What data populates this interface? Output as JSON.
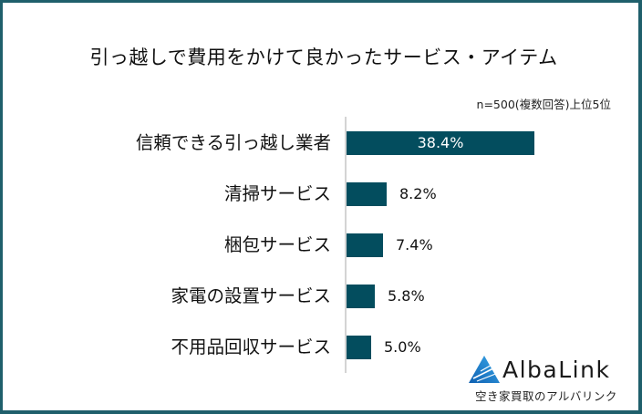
{
  "title": "引っ越しで費用をかけて良かったサービス・アイテム",
  "note": "n=500(複数回答)上位5位",
  "colors": {
    "bar": "#034d5e",
    "frame": "#1f5f6b",
    "axis": "#d4d4d4",
    "logo": "#1e8ad6"
  },
  "chart_data": {
    "type": "bar",
    "orientation": "horizontal",
    "title": "引っ越しで費用をかけて良かったサービス・アイテム",
    "subtitle": "n=500(複数回答)上位5位",
    "categories": [
      "信頼できる引っ越し業者",
      "清掃サービス",
      "梱包サービス",
      "家電の設置サービス",
      "不用品回収サービス"
    ],
    "values": [
      38.4,
      8.2,
      7.4,
      5.8,
      5.0
    ],
    "labels": [
      "38.4%",
      "8.2%",
      "7.4%",
      "5.8%",
      "5.0%"
    ],
    "unit": "%",
    "xlabel": "",
    "ylabel": "",
    "xlim": [
      0,
      40
    ],
    "grid": false,
    "legend": null
  },
  "logo": {
    "name": "AlbaLink",
    "tagline": "空き家買取のアルバリンク",
    "icon": "triangle-logo-icon"
  }
}
